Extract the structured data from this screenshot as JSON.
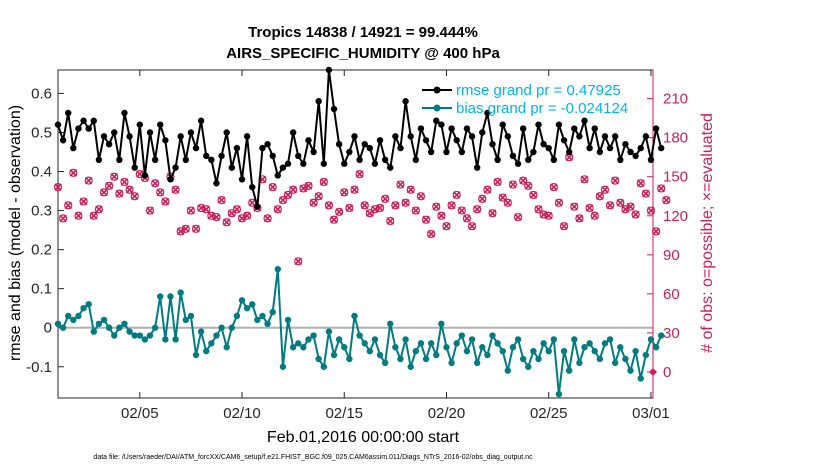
{
  "chart_data": {
    "type": "line",
    "title_line1": "Tropics 14838 / 14921 = 99.444%",
    "title_line2": "AIRS_SPECIFIC_HUMIDITY @ 400 hPa",
    "xlabel": "Feb.01,2016 00:00:00 start",
    "ylabel_left": "rmse and bias (model - observation)",
    "ylabel_right": "# of obs: o=possible; ×=evaluated",
    "footnote": "data file: /Users/raeder/DAI/ATM_forcXX/CAM6_setup/f.e21.FHIST_BGC.f09_025.CAM6assim.011/Diags_NTrS_2016-02/obs_diag_output.nc",
    "xlim": [
      1.0,
      30.1
    ],
    "ylim_left": [
      -0.18,
      0.66
    ],
    "ylim_right": [
      -20,
      232
    ],
    "x_ticks": [
      {
        "value": 5,
        "label": "02/05"
      },
      {
        "value": 10,
        "label": "02/10"
      },
      {
        "value": 15,
        "label": "02/15"
      },
      {
        "value": 20,
        "label": "02/20"
      },
      {
        "value": 25,
        "label": "02/25"
      },
      {
        "value": 30,
        "label": "03/01"
      }
    ],
    "y_ticks_left": [
      {
        "value": -0.1,
        "label": "-0.1"
      },
      {
        "value": 0,
        "label": "0"
      },
      {
        "value": 0.1,
        "label": "0.1"
      },
      {
        "value": 0.2,
        "label": "0.2"
      },
      {
        "value": 0.3,
        "label": "0.3"
      },
      {
        "value": 0.4,
        "label": "0.4"
      },
      {
        "value": 0.5,
        "label": "0.5"
      },
      {
        "value": 0.6,
        "label": "0.6"
      }
    ],
    "y_ticks_right": [
      {
        "value": 0,
        "label": "0"
      },
      {
        "value": 30,
        "label": "30"
      },
      {
        "value": 60,
        "label": "60"
      },
      {
        "value": 90,
        "label": "90"
      },
      {
        "value": 120,
        "label": "120"
      },
      {
        "value": 150,
        "label": "150"
      },
      {
        "value": 180,
        "label": "180"
      },
      {
        "value": 210,
        "label": "210"
      }
    ],
    "x_start": 1.0,
    "x_step": 0.25,
    "series": [
      {
        "name": "rmse grand pr = 0.47925",
        "color": "#000000",
        "axis": "left",
        "values": [
          0.52,
          0.48,
          0.55,
          0.46,
          0.51,
          0.53,
          0.51,
          0.53,
          0.43,
          0.49,
          0.47,
          0.5,
          0.43,
          0.55,
          0.49,
          0.41,
          0.52,
          0.39,
          0.5,
          0.43,
          0.52,
          0.48,
          0.38,
          0.41,
          0.49,
          0.43,
          0.5,
          0.46,
          0.53,
          0.44,
          0.43,
          0.37,
          0.44,
          0.5,
          0.41,
          0.46,
          0.38,
          0.49,
          0.36,
          0.31,
          0.46,
          0.47,
          0.44,
          0.39,
          0.41,
          0.42,
          0.5,
          0.44,
          0.42,
          0.48,
          0.45,
          0.58,
          0.42,
          0.66,
          0.56,
          0.47,
          0.42,
          0.45,
          0.49,
          0.43,
          0.47,
          0.46,
          0.42,
          0.48,
          0.43,
          0.41,
          0.49,
          0.46,
          0.58,
          0.49,
          0.43,
          0.51,
          0.48,
          0.45,
          0.53,
          0.52,
          0.45,
          0.51,
          0.48,
          0.45,
          0.51,
          0.49,
          0.41,
          0.5,
          0.55,
          0.47,
          0.43,
          0.52,
          0.49,
          0.44,
          0.42,
          0.51,
          0.43,
          0.45,
          0.52,
          0.47,
          0.46,
          0.43,
          0.52,
          0.48,
          0.45,
          0.51,
          0.49,
          0.53,
          0.46,
          0.51,
          0.45,
          0.49,
          0.46,
          0.49,
          0.43,
          0.47,
          0.45,
          0.44,
          0.46,
          0.49,
          0.43,
          0.51,
          0.46
        ],
        "marker": "dot"
      },
      {
        "name": "bias grand pr = -0.024124",
        "color": "#007c80",
        "axis": "left",
        "values": [
          0.01,
          0.0,
          0.03,
          0.02,
          0.03,
          0.05,
          0.06,
          -0.01,
          0.01,
          0.02,
          0.0,
          -0.02,
          0.0,
          0.01,
          -0.01,
          -0.02,
          -0.02,
          -0.03,
          -0.02,
          0.0,
          0.08,
          -0.03,
          0.08,
          -0.03,
          0.09,
          0.02,
          0.03,
          -0.07,
          -0.01,
          -0.06,
          -0.04,
          -0.02,
          0.0,
          -0.05,
          0.0,
          0.03,
          0.07,
          0.05,
          0.06,
          0.02,
          0.03,
          0.01,
          0.04,
          0.15,
          -0.1,
          0.02,
          -0.05,
          -0.04,
          -0.05,
          -0.03,
          -0.02,
          -0.08,
          -0.1,
          -0.01,
          -0.07,
          -0.03,
          -0.05,
          -0.08,
          0.03,
          -0.02,
          -0.04,
          -0.06,
          -0.03,
          -0.07,
          -0.09,
          0.01,
          -0.05,
          -0.08,
          -0.03,
          -0.1,
          -0.06,
          -0.04,
          -0.08,
          -0.04,
          -0.07,
          0.01,
          -0.05,
          -0.09,
          -0.04,
          -0.02,
          -0.06,
          -0.03,
          -0.09,
          -0.05,
          -0.07,
          -0.02,
          -0.04,
          -0.06,
          -0.11,
          -0.05,
          -0.03,
          -0.08,
          -0.1,
          -0.06,
          -0.08,
          -0.04,
          -0.06,
          -0.03,
          -0.17,
          -0.06,
          -0.11,
          -0.03,
          -0.09,
          -0.05,
          -0.04,
          -0.06,
          -0.08,
          -0.04,
          -0.03,
          -0.09,
          -0.05,
          -0.08,
          -0.11,
          -0.06,
          -0.13,
          -0.07,
          -0.03,
          -0.05,
          -0.02
        ],
        "marker": "dot"
      },
      {
        "name": "# of obs possible",
        "color": "#cc1e5a",
        "axis": "right",
        "marker": "o",
        "values": [
          142,
          118,
          128,
          153,
          120,
          131,
          147,
          120,
          125,
          138,
          143,
          150,
          137,
          146,
          140,
          135,
          152,
          149,
          124,
          145,
          138,
          131,
          150,
          140,
          108,
          110,
          124,
          110,
          126,
          125,
          120,
          119,
          132,
          115,
          122,
          125,
          118,
          120,
          130,
          126,
          148,
          118,
          142,
          125,
          132,
          136,
          140,
          85,
          141,
          143,
          130,
          135,
          146,
          128,
          117,
          123,
          138,
          126,
          140,
          152,
          128,
          122,
          125,
          126,
          133,
          116,
          128,
          144,
          130,
          140,
          124,
          135,
          117,
          106,
          127,
          120,
          112,
          128,
          136,
          124,
          118,
          112,
          125,
          133,
          140,
          122,
          146,
          134,
          130,
          144,
          119,
          147,
          143,
          136,
          125,
          121,
          120,
          142,
          130,
          112,
          165,
          127,
          118,
          148,
          126,
          120,
          135,
          140,
          128,
          147,
          130,
          125,
          127,
          121,
          145,
          137,
          124,
          108,
          141,
          132
        ]
      },
      {
        "name": "# of obs evaluated",
        "color": "#cc1e5a",
        "axis": "right",
        "marker": "x",
        "values": [
          142,
          118,
          128,
          153,
          120,
          131,
          147,
          120,
          125,
          138,
          143,
          150,
          137,
          146,
          140,
          135,
          152,
          149,
          124,
          145,
          138,
          131,
          150,
          140,
          108,
          110,
          124,
          110,
          126,
          125,
          120,
          119,
          132,
          115,
          122,
          125,
          118,
          120,
          130,
          126,
          148,
          118,
          142,
          125,
          132,
          136,
          140,
          85,
          141,
          143,
          130,
          135,
          146,
          128,
          117,
          123,
          138,
          126,
          140,
          152,
          128,
          122,
          125,
          126,
          133,
          116,
          128,
          144,
          130,
          140,
          124,
          135,
          117,
          106,
          127,
          120,
          112,
          128,
          136,
          124,
          118,
          112,
          125,
          133,
          140,
          122,
          146,
          134,
          130,
          144,
          119,
          147,
          143,
          136,
          125,
          121,
          120,
          142,
          130,
          112,
          165,
          127,
          118,
          148,
          126,
          120,
          135,
          140,
          128,
          147,
          130,
          125,
          127,
          121,
          145,
          137,
          124,
          108,
          141,
          132
        ]
      }
    ],
    "extra_points": {
      "possible_at_end_right_axis": 0
    },
    "zero_line": true
  }
}
